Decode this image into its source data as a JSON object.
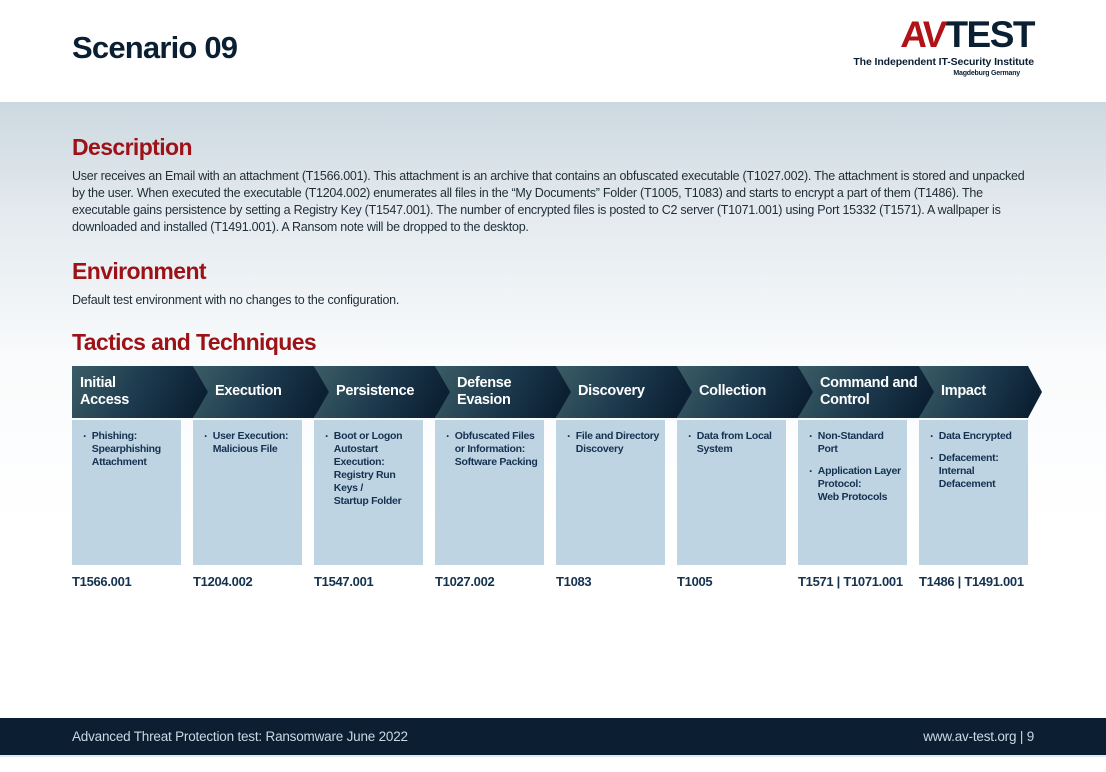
{
  "header": {
    "title": "Scenario 09"
  },
  "logo": {
    "av": "AV",
    "test": "TEST",
    "tagline": "The Independent IT-Security Institute",
    "location": "Magdeburg Germany"
  },
  "description": {
    "heading": "Description",
    "body": "User receives an Email with an attachment (T1566.001). This attachment is an archive that contains an obfuscated executable (T1027.002). The attachment is stored and unpacked by the user. When executed the executable (T1204.002) enumerates all files in the “My Documents” Folder (T1005, T1083) and starts to encrypt a part of them (T1486). The executable gains persistence by setting a Registry Key (T1547.001). The number of encrypted files is posted to C2 server (T1071.001) using Port 15332 (T1571). A wallpaper is downloaded and installed (T1491.001). A Ransom note will be dropped to the desktop."
  },
  "environment": {
    "heading": "Environment",
    "body": "Default test environment with no changes to the configuration."
  },
  "tactics": {
    "heading": "Tactics and Techniques",
    "bullet": "·",
    "columns": [
      {
        "tactic": "Initial\nAccess",
        "techniques": [
          "Phishing:\nSpearphishing\nAttachment"
        ],
        "ids": "T1566.001"
      },
      {
        "tactic": "Execution",
        "techniques": [
          "User Execution:\nMalicious File"
        ],
        "ids": "T1204.002"
      },
      {
        "tactic": "Persistence",
        "techniques": [
          "Boot or Logon\nAutostart Execution:\nRegistry Run Keys /\nStartup Folder"
        ],
        "ids": "T1547.001"
      },
      {
        "tactic": "Defense\nEvasion",
        "techniques": [
          "Obfuscated Files\nor Information:\nSoftware Packing"
        ],
        "ids": "T1027.002"
      },
      {
        "tactic": "Discovery",
        "techniques": [
          "File and Directory\nDiscovery"
        ],
        "ids": "T1083"
      },
      {
        "tactic": "Collection",
        "techniques": [
          "Data from Local\nSystem"
        ],
        "ids": "T1005"
      },
      {
        "tactic": "Command and\nControl",
        "techniques": [
          "Non-Standard Port",
          "Application Layer\nProtocol:\nWeb Protocols"
        ],
        "ids": "T1571 | T1071.001"
      },
      {
        "tactic": "Impact",
        "techniques": [
          "Data Encrypted",
          "Defacement:\nInternal\nDefacement"
        ],
        "ids": "T1486 | T1491.001"
      }
    ]
  },
  "footer": {
    "left": "Advanced Threat Protection test: Ransomware June 2022",
    "right": "www.av-test.org | 9"
  },
  "colors": {
    "accent_red": "#9d1216",
    "navy": "#0b1f33",
    "header_gradient_start": "#3b5d66",
    "header_gradient_end": "#0c2033",
    "cell_blue": "#bfd4e3",
    "footer_bar": "#0b1e32"
  }
}
